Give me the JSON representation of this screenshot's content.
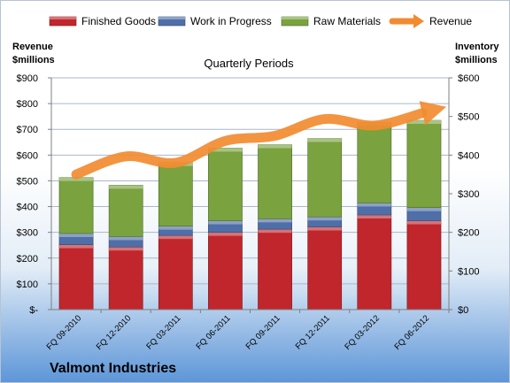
{
  "company": "Valmont Industries",
  "chart_data": {
    "type": "bar",
    "stacked": true,
    "subtitle": "Quarterly Periods",
    "left_axis": {
      "title_line1": "Revenue",
      "title_line2": "$millions",
      "ticks": [
        "$-",
        "$100",
        "$200",
        "$300",
        "$400",
        "$500",
        "$600",
        "$700",
        "$800",
        "$900"
      ],
      "ylim": [
        0,
        900
      ]
    },
    "right_axis": {
      "title_line1": "Inventory",
      "title_line2": "$millions",
      "ticks": [
        "$0",
        "$100",
        "$200",
        "$300",
        "$400",
        "$500",
        "$600"
      ],
      "ylim": [
        0,
        600
      ]
    },
    "categories": [
      "FQ 09-2010",
      "FQ 12-2010",
      "FQ 03-2011",
      "FQ 06-2011",
      "FQ 09-2011",
      "FQ 12-2011",
      "FQ 03-2012",
      "FQ 06-2012"
    ],
    "series": [
      {
        "name": "Finished Goods",
        "axis": "right",
        "color": "#c0262c",
        "values": [
          168,
          162,
          192,
          200,
          208,
          214,
          245,
          230
        ]
      },
      {
        "name": "Work in Progress",
        "axis": "right",
        "color": "#4f6fa8",
        "values": [
          29,
          27,
          24,
          30,
          27,
          26,
          31,
          34
        ]
      },
      {
        "name": "Raw Materials",
        "axis": "right",
        "color": "#7aa23f",
        "values": [
          145,
          133,
          165,
          188,
          192,
          203,
          209,
          226
        ]
      },
      {
        "name": "Revenue",
        "axis": "left",
        "type": "line",
        "color": "#f28b30",
        "values": [
          525,
          595,
          570,
          655,
          675,
          740,
          715,
          765
        ]
      }
    ],
    "grid": true,
    "legend": "top"
  }
}
